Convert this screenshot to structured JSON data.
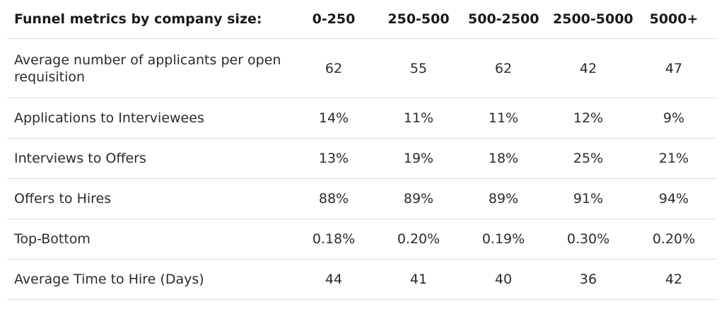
{
  "table": {
    "header": {
      "label": "Funnel metrics by company size:",
      "columns": [
        "0-250",
        "250-500",
        "500-2500",
        "2500-5000",
        "5000+"
      ]
    },
    "rows": [
      {
        "label": "Average number of applicants per open requisition",
        "values": [
          "62",
          "55",
          "62",
          "42",
          "47"
        ]
      },
      {
        "label": "Applications to Interviewees",
        "values": [
          "14%",
          "11%",
          "11%",
          "12%",
          "9%"
        ]
      },
      {
        "label": "Interviews to Offers",
        "values": [
          "13%",
          "19%",
          "18%",
          "25%",
          "21%"
        ]
      },
      {
        "label": "Offers to Hires",
        "values": [
          "88%",
          "89%",
          "89%",
          "91%",
          "94%"
        ]
      },
      {
        "label": "Top-Bottom",
        "values": [
          "0.18%",
          "0.20%",
          "0.19%",
          "0.30%",
          "0.20%"
        ]
      },
      {
        "label": "Average Time to Hire (Days)",
        "values": [
          "44",
          "41",
          "40",
          "36",
          "42"
        ]
      }
    ]
  }
}
